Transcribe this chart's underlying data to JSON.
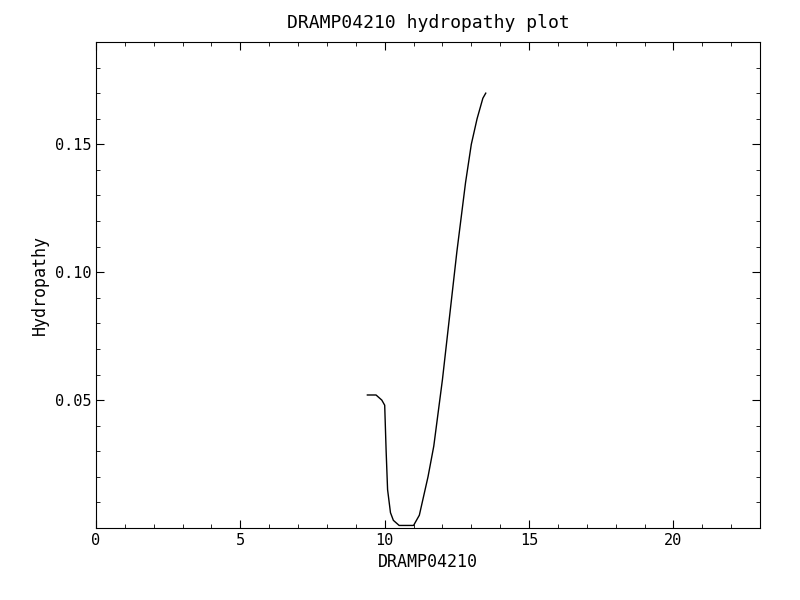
{
  "title": "DRAMP04210 hydropathy plot",
  "xlabel": "DRAMP04210",
  "ylabel": "Hydropathy",
  "xlim": [
    0,
    23
  ],
  "ylim": [
    0,
    0.19
  ],
  "xticks": [
    0,
    5,
    10,
    15,
    20
  ],
  "yticks": [
    0.05,
    0.1,
    0.15
  ],
  "line_color": "#000000",
  "line_width": 1.0,
  "background_color": "#ffffff",
  "x_data": [
    9.4,
    9.5,
    9.6,
    9.7,
    9.8,
    9.9,
    10.0,
    10.05,
    10.1,
    10.2,
    10.3,
    10.4,
    10.5,
    10.6,
    10.7,
    10.8,
    10.85,
    10.9,
    11.0,
    11.05,
    11.1,
    11.2,
    11.3,
    11.5,
    11.7,
    12.0,
    12.2,
    12.5,
    12.8,
    13.0,
    13.2,
    13.4,
    13.5
  ],
  "y_data": [
    0.052,
    0.052,
    0.052,
    0.052,
    0.051,
    0.05,
    0.048,
    0.03,
    0.015,
    0.006,
    0.003,
    0.002,
    0.001,
    0.001,
    0.001,
    0.001,
    0.001,
    0.001,
    0.001,
    0.002,
    0.003,
    0.005,
    0.01,
    0.02,
    0.032,
    0.058,
    0.078,
    0.108,
    0.135,
    0.15,
    0.16,
    0.168,
    0.17
  ],
  "title_fontsize": 13,
  "label_fontsize": 12,
  "tick_fontsize": 11,
  "font_family": "DejaVu Sans Mono"
}
